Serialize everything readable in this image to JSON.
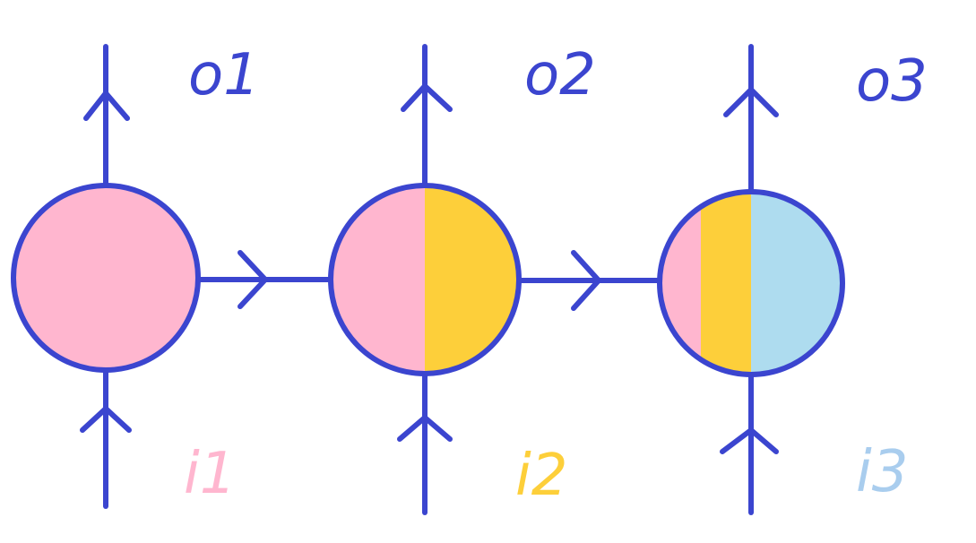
{
  "colors": {
    "stroke": "#3b45cf",
    "pink": "#ffb6cf",
    "yellow": "#fdcf3a",
    "blue": "#aedcef",
    "output_label": "#3b45cf",
    "i1_label": "#ffb6cf",
    "i2_label": "#fdcf3a",
    "i3_label": "#a9cdee"
  },
  "labels": {
    "o1": "o1",
    "o2": "o2",
    "o3": "o3",
    "i1": "i1",
    "i2": "i2",
    "i3": "i3"
  },
  "nodes": [
    {
      "name": "node-1",
      "segments": [
        "pink"
      ]
    },
    {
      "name": "node-2",
      "segments": [
        "pink",
        "yellow"
      ]
    },
    {
      "name": "node-3",
      "segments": [
        "pink",
        "yellow",
        "blue"
      ]
    }
  ]
}
